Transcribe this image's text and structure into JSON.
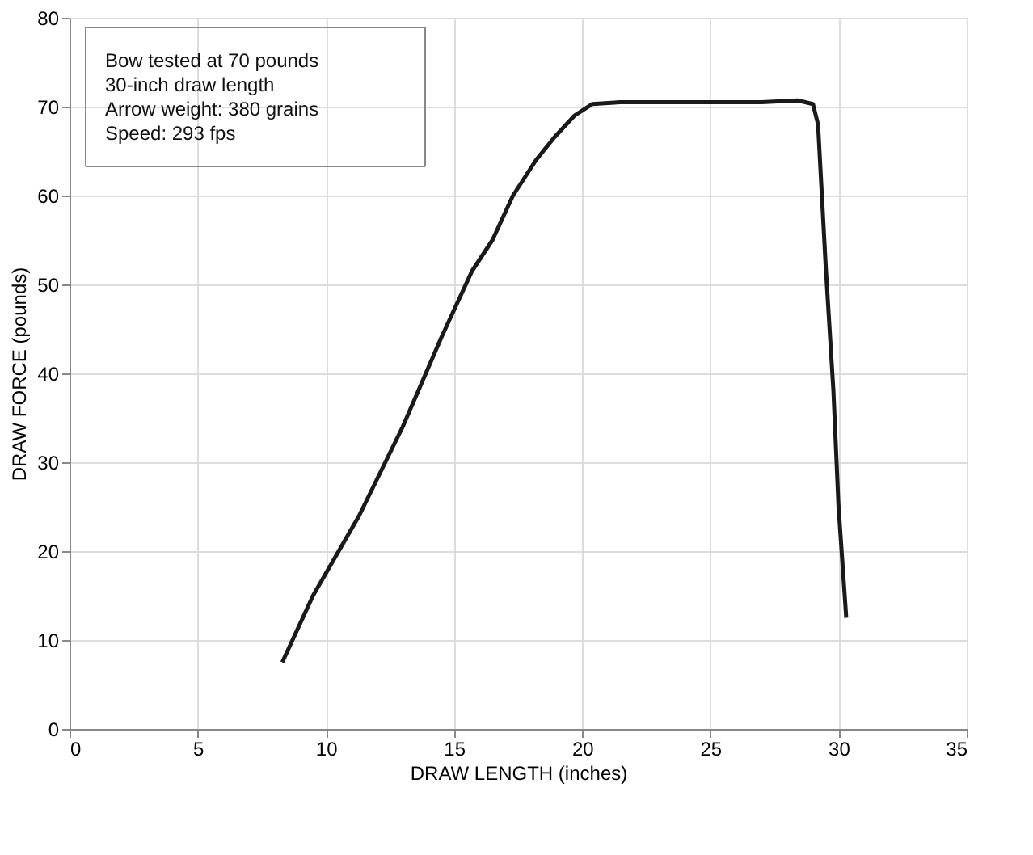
{
  "chart_data": {
    "type": "line",
    "xlabel": "DRAW LENGTH (inches)",
    "ylabel": "DRAW FORCE (pounds)",
    "x": [
      8.3,
      9.5,
      11.3,
      13.0,
      14.5,
      15.7,
      16.5,
      17.3,
      18.2,
      18.9,
      19.7,
      20.4,
      21.5,
      23.0,
      25.0,
      27.0,
      28.4,
      29.0,
      29.2,
      29.5,
      29.8,
      30.0,
      30.3
    ],
    "series": [
      {
        "color": "#1a1a1a",
        "values": [
          7.5,
          15,
          24,
          34,
          44,
          51.5,
          55,
          60,
          64,
          66.5,
          69,
          70.3,
          70.5,
          70.5,
          70.5,
          70.5,
          70.7,
          70.3,
          68,
          52,
          38,
          25,
          12.5
        ]
      }
    ],
    "xlim": [
      0,
      35
    ],
    "ylim": [
      0,
      80
    ],
    "xticks": [
      0,
      5,
      10,
      15,
      20,
      25,
      30,
      35
    ],
    "yticks": [
      0,
      10,
      20,
      30,
      40,
      50,
      60,
      70,
      80
    ],
    "grid": true,
    "marker": "none",
    "line_style": "solid",
    "annotations": [
      "Bow tested at 70 pounds",
      "30-inch draw length",
      "Arrow weight: 380 grains",
      "Speed: 293 fps"
    ]
  }
}
